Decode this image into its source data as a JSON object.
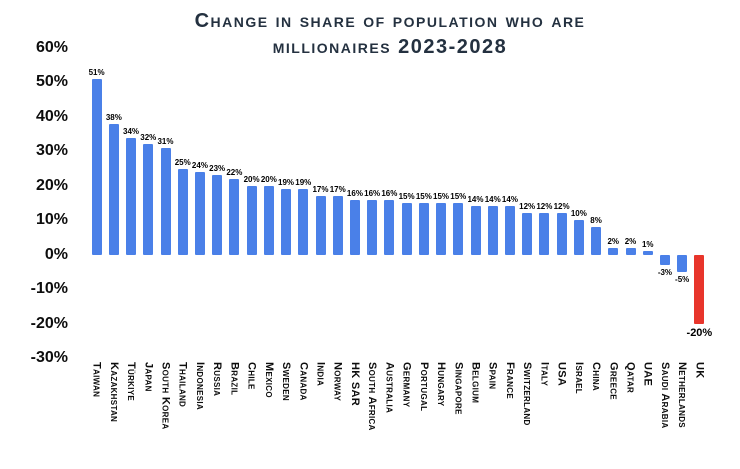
{
  "chart_data": {
    "type": "bar",
    "title": "Change in share of population who are millionaires 2023-2028",
    "title_line1": "Change in share of population who are",
    "title_line2": "millionaires 2023-2028",
    "categories": [
      "Taiwan",
      "Kazakhstan",
      "Türkiye",
      "Japan",
      "South Korea",
      "Thailand",
      "Indonesia",
      "Russia",
      "Brazil",
      "Chile",
      "Mexico",
      "Sweden",
      "Canada",
      "India",
      "Norway",
      "HK SAR",
      "South Africa",
      "Australia",
      "Germany",
      "Portugal",
      "Hungary",
      "Singapore",
      "Belgium",
      "Spain",
      "France",
      "Switzerland",
      "Italy",
      "USA",
      "Israel",
      "China",
      "Greece",
      "Qatar",
      "UAE",
      "Saudi Arabia",
      "Netherlands",
      "UK"
    ],
    "values": [
      51,
      38,
      34,
      32,
      31,
      25,
      24,
      23,
      22,
      20,
      20,
      19,
      19,
      17,
      17,
      16,
      16,
      16,
      15,
      15,
      15,
      15,
      14,
      14,
      14,
      12,
      12,
      12,
      10,
      8,
      2,
      2,
      1,
      -3,
      -5,
      -20
    ],
    "value_labels": [
      "51%",
      "38%",
      "34%",
      "32%",
      "31%",
      "25%",
      "24%",
      "23%",
      "22%",
      "20%",
      "20%",
      "19%",
      "19%",
      "17%",
      "17%",
      "16%",
      "16%",
      "16%",
      "15%",
      "15%",
      "15%",
      "15%",
      "14%",
      "14%",
      "14%",
      "12%",
      "12%",
      "12%",
      "10%",
      "8%",
      "2%",
      "2%",
      "1%",
      "-3%",
      "-5%",
      "-20%"
    ],
    "highlight_category": "UK",
    "colors": {
      "bar": "#4a80e8",
      "highlight": "#e8352b",
      "title": "#243140",
      "axis_text": "#0d0d0d"
    },
    "ylim": [
      -30,
      60
    ],
    "ytick_step": 10,
    "yticks": [
      "60%",
      "50%",
      "40%",
      "30%",
      "20%",
      "10%",
      "0%",
      "-10%",
      "-20%",
      "-30%"
    ],
    "xlabel": "",
    "ylabel": "",
    "grid": false,
    "legend": "none"
  }
}
